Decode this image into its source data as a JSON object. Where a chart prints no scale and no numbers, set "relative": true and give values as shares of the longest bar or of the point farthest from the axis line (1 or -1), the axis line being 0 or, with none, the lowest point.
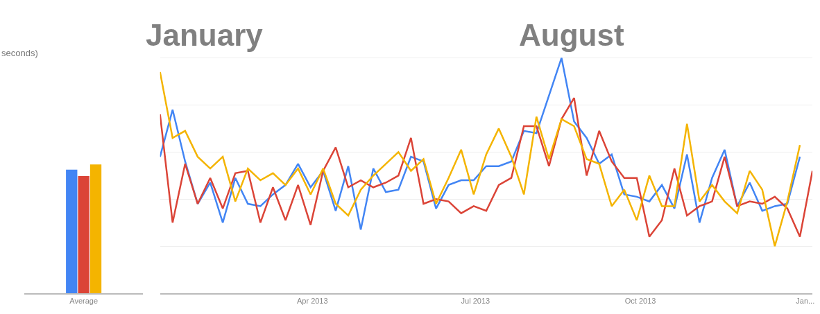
{
  "chart_data": [
    {
      "type": "bar",
      "relative": true,
      "categories": [
        "Average"
      ],
      "annotations": [
        "seconds)"
      ],
      "series": [
        {
          "color": "#4285f4",
          "values": [
            0.96
          ]
        },
        {
          "color": "#db4437",
          "values": [
            0.91
          ]
        },
        {
          "color": "#f4b400",
          "values": [
            1
          ]
        }
      ]
    },
    {
      "type": "line",
      "relative": true,
      "grid": "y",
      "annotations": [
        "January",
        "August"
      ],
      "xlim": [
        "2013-01-06",
        "2014-01-05"
      ],
      "xticks": [
        {
          "value": "2013-04-01",
          "label": "Apr 2013"
        },
        {
          "value": "2013-07-01",
          "label": "Jul 2013"
        },
        {
          "value": "2013-10-01",
          "label": "Oct 2013"
        },
        {
          "value": "2014-01-01",
          "label": "Jan..."
        }
      ],
      "x": [
        "2013-01-06",
        "2013-01-13",
        "2013-01-20",
        "2013-01-27",
        "2013-02-03",
        "2013-02-10",
        "2013-02-17",
        "2013-02-24",
        "2013-03-03",
        "2013-03-10",
        "2013-03-17",
        "2013-03-24",
        "2013-03-31",
        "2013-04-07",
        "2013-04-14",
        "2013-04-21",
        "2013-04-28",
        "2013-05-05",
        "2013-05-12",
        "2013-05-19",
        "2013-05-26",
        "2013-06-02",
        "2013-06-09",
        "2013-06-16",
        "2013-06-23",
        "2013-06-30",
        "2013-07-07",
        "2013-07-14",
        "2013-07-21",
        "2013-07-28",
        "2013-08-04",
        "2013-08-11",
        "2013-08-18",
        "2013-08-25",
        "2013-09-01",
        "2013-09-08",
        "2013-09-15",
        "2013-09-22",
        "2013-09-29",
        "2013-10-06",
        "2013-10-13",
        "2013-10-20",
        "2013-10-27",
        "2013-11-03",
        "2013-11-10",
        "2013-11-17",
        "2013-11-24",
        "2013-12-01",
        "2013-12-08",
        "2013-12-15",
        "2013-12-22",
        "2013-12-29",
        "2014-01-05"
      ],
      "series": [
        {
          "color": "#4285f4",
          "values": [
            0.58,
            0.78,
            0.56,
            0.38,
            0.47,
            0.3,
            0.49,
            0.38,
            0.37,
            0.42,
            0.46,
            0.55,
            0.45,
            0.52,
            0.35,
            0.54,
            0.27,
            0.53,
            0.43,
            0.44,
            0.58,
            0.56,
            0.36,
            0.46,
            0.48,
            0.48,
            0.54,
            0.54,
            0.56,
            0.69,
            0.68,
            0.84,
            1.0,
            0.73,
            0.66,
            0.55,
            0.59,
            0.42,
            0.41,
            0.39,
            0.46,
            0.36,
            0.59,
            0.3,
            0.49,
            0.61,
            0.37,
            0.47,
            0.35,
            0.37,
            0.38,
            0.58,
            null
          ]
        },
        {
          "color": "#db4437",
          "values": [
            0.76,
            0.3,
            0.55,
            0.38,
            0.49,
            0.36,
            0.51,
            0.52,
            0.3,
            0.45,
            0.31,
            0.46,
            0.29,
            0.52,
            0.62,
            0.45,
            0.48,
            0.45,
            0.47,
            0.5,
            0.66,
            0.38,
            0.4,
            0.39,
            0.34,
            0.37,
            0.35,
            0.46,
            0.49,
            0.71,
            0.71,
            0.54,
            0.74,
            0.83,
            0.5,
            0.69,
            0.56,
            0.49,
            0.49,
            0.24,
            0.31,
            0.53,
            0.33,
            0.37,
            0.39,
            0.58,
            0.37,
            0.39,
            0.38,
            0.41,
            0.36,
            0.24,
            0.52
          ]
        },
        {
          "color": "#f4b400",
          "values": [
            0.94,
            0.66,
            0.69,
            0.58,
            0.53,
            0.58,
            0.39,
            0.53,
            0.48,
            0.51,
            0.46,
            0.53,
            0.42,
            0.53,
            0.38,
            0.33,
            0.44,
            0.5,
            0.55,
            0.6,
            0.52,
            0.57,
            0.38,
            0.49,
            0.61,
            0.42,
            0.59,
            0.7,
            0.58,
            0.42,
            0.75,
            0.57,
            0.74,
            0.71,
            0.57,
            0.55,
            0.37,
            0.44,
            0.31,
            0.5,
            0.37,
            0.37,
            0.72,
            0.39,
            0.46,
            0.39,
            0.34,
            0.52,
            0.44,
            0.2,
            0.39,
            0.63,
            null
          ]
        }
      ]
    }
  ]
}
